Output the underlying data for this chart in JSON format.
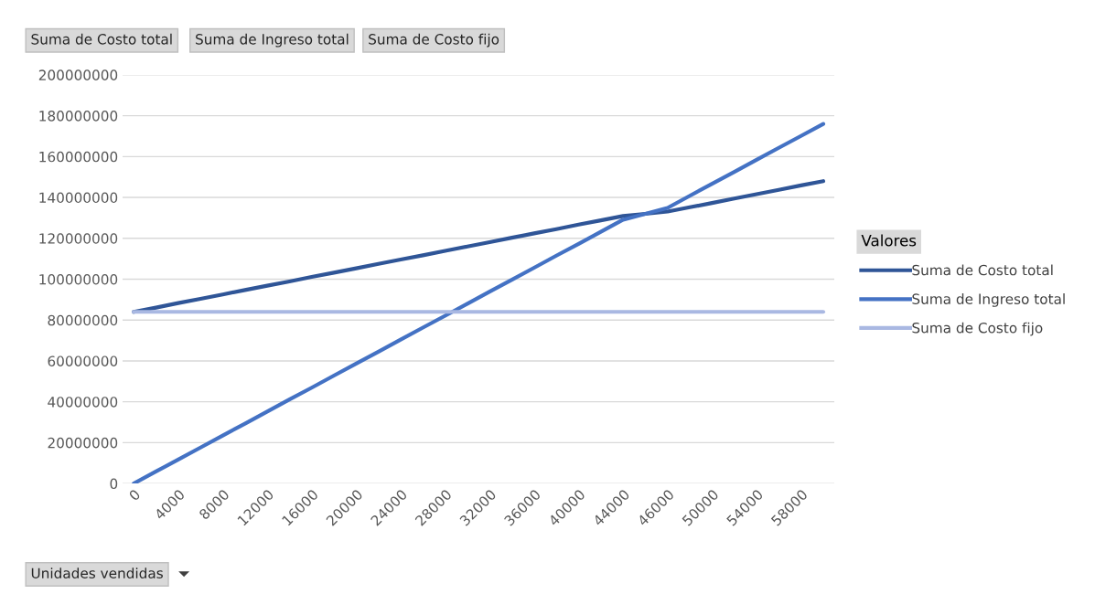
{
  "chart_data": {
    "type": "line",
    "annotations": [
      "Suma de Costo total",
      "Suma de Ingreso total",
      "Suma de Costo fijo"
    ],
    "xlabel": "Unidades vendidas",
    "legend_title": "Valores",
    "categories": [
      "0",
      null,
      "4000",
      null,
      "8000",
      null,
      "12000",
      null,
      "16000",
      null,
      "20000",
      null,
      "24000",
      null,
      "28000",
      null,
      "32000",
      null,
      "36000",
      null,
      "40000",
      null,
      "44000",
      null,
      "46000",
      null,
      "50000",
      null,
      "54000",
      null,
      "58000",
      null
    ],
    "series": [
      {
        "name": "Suma de Costo total",
        "color": "#2f5597",
        "values": [
          84000000,
          86100000,
          88300000,
          90400000,
          92500000,
          94700000,
          96800000,
          98900000,
          101100000,
          103200000,
          105300000,
          107500000,
          109600000,
          111700000,
          113900000,
          116000000,
          118100000,
          120300000,
          122400000,
          124500000,
          126700000,
          128800000,
          130900000,
          132000000,
          133100000,
          135200000,
          137300000,
          139500000,
          141600000,
          143700000,
          145900000,
          148000000
        ]
      },
      {
        "name": "Suma de Ingreso total",
        "color": "#4472c4",
        "values": [
          0,
          5900000,
          11700000,
          17600000,
          23500000,
          29300000,
          35200000,
          41100000,
          46900000,
          52800000,
          58700000,
          64500000,
          70400000,
          76300000,
          82100000,
          88000000,
          93900000,
          99700000,
          105600000,
          111500000,
          117300000,
          123200000,
          129100000,
          132000000,
          134900000,
          140800000,
          146700000,
          152500000,
          158400000,
          164300000,
          170100000,
          176000000
        ]
      },
      {
        "name": "Suma de Costo fijo",
        "color": "#a9b8e2",
        "values": [
          84000000,
          84000000,
          84000000,
          84000000,
          84000000,
          84000000,
          84000000,
          84000000,
          84000000,
          84000000,
          84000000,
          84000000,
          84000000,
          84000000,
          84000000,
          84000000,
          84000000,
          84000000,
          84000000,
          84000000,
          84000000,
          84000000,
          84000000,
          84000000,
          84000000,
          84000000,
          84000000,
          84000000,
          84000000,
          84000000,
          84000000,
          84000000
        ]
      }
    ],
    "ylim": [
      0,
      200000000
    ],
    "yticks": [
      0,
      20000000,
      40000000,
      60000000,
      80000000,
      100000000,
      120000000,
      140000000,
      160000000,
      180000000,
      200000000
    ],
    "grid": "y",
    "legend": "right",
    "marker": "none",
    "line_style": "solid"
  }
}
